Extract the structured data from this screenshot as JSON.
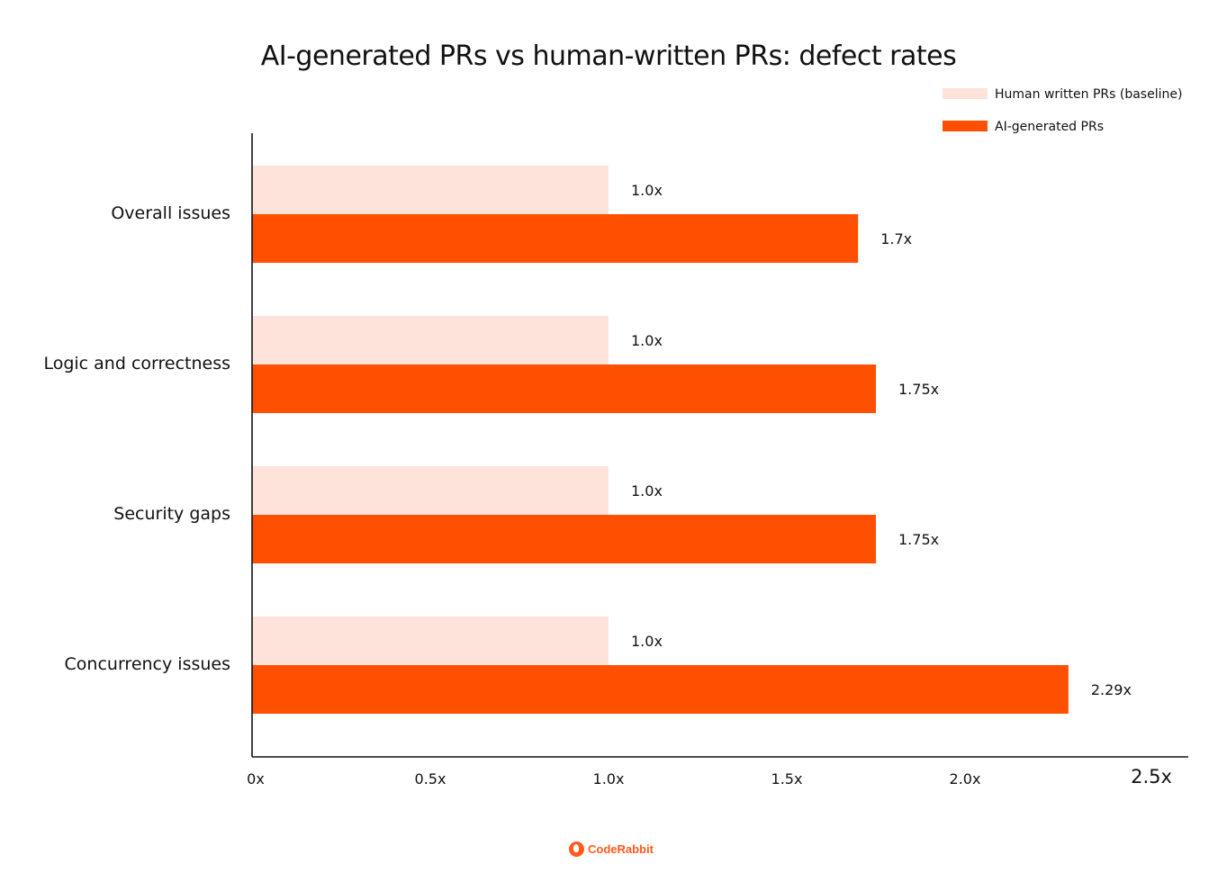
{
  "chart_data": {
    "type": "bar",
    "orientation": "horizontal",
    "title": "AI-generated PRs vs human-written PRs: defect rates",
    "categories": [
      "Overall issues",
      "Logic and correctness",
      "Security gaps",
      "Concurrency issues"
    ],
    "series": [
      {
        "name": "Human written PRs (baseline)",
        "color": "#fde3d9",
        "values": [
          1.0,
          1.0,
          1.0,
          1.0
        ],
        "labels": [
          "1.0x",
          "1.0x",
          "1.0x",
          "1.0x"
        ]
      },
      {
        "name": "AI-generated PRs",
        "color": "#ff4f00",
        "values": [
          1.7,
          1.75,
          1.75,
          2.29
        ],
        "labels": [
          "1.7x",
          "1.75x",
          "1.75x",
          "2.29x"
        ]
      }
    ],
    "xlim": [
      0,
      2.5
    ],
    "xticks": [
      0,
      0.5,
      1.0,
      1.5,
      2.0,
      2.5
    ],
    "xtick_labels": [
      "0x",
      "0.5x",
      "1.0x",
      "1.5x",
      "2.0x",
      "2.5x"
    ],
    "xlabel": "",
    "ylabel": "",
    "grid": false,
    "legend_position": "top-right"
  },
  "brand": {
    "name": "CodeRabbit",
    "color": "#ff5a1f",
    "icon": "rabbit-logo-icon"
  }
}
